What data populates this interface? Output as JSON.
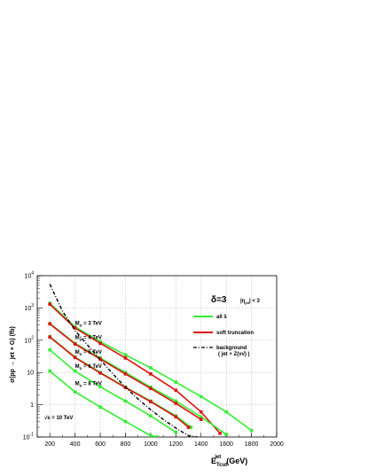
{
  "chart_data": {
    "type": "line",
    "ylabel": "σ(pp → jet + G)  (fb)",
    "xlabel_main": "E",
    "xlabel_sub": "Tcut",
    "xlabel_sup": "jet",
    "xlabel_unit": "(GeV)",
    "xlim": [
      100,
      2000
    ],
    "ylim_log10": [
      -1,
      4
    ],
    "y_log": true,
    "grid": true,
    "x_ticks": [
      {
        "v": 200,
        "t": "200"
      },
      {
        "v": 400,
        "t": "400"
      },
      {
        "v": 600,
        "t": "600"
      },
      {
        "v": 800,
        "t": "800"
      },
      {
        "v": 1000,
        "t": "1000"
      },
      {
        "v": 1200,
        "t": "1200"
      },
      {
        "v": 1400,
        "t": "1400"
      },
      {
        "v": 1600,
        "t": "1600"
      },
      {
        "v": 1800,
        "t": "1800"
      },
      {
        "v": 2000,
        "t": "2000"
      }
    ],
    "y_ticks": [
      {
        "v": -1,
        "base": "10",
        "exp": "-1"
      },
      {
        "v": 0,
        "base": "1",
        "exp": ""
      },
      {
        "v": 1,
        "base": "10",
        "exp": ""
      },
      {
        "v": 2,
        "base": "10",
        "exp": "2"
      },
      {
        "v": 3,
        "base": "10",
        "exp": "3"
      },
      {
        "v": 4,
        "base": "10",
        "exp": "4"
      }
    ],
    "series": [
      {
        "name": "all ŝ",
        "color": "#33ee33",
        "style": "solid",
        "group": "M_D = 3 TeV",
        "x": [
          200,
          400,
          600,
          800,
          1000,
          1200,
          1400,
          1600,
          1800
        ],
        "y": [
          1400,
          260,
          90,
          35,
          14,
          5,
          1.8,
          0.6,
          0.16
        ]
      },
      {
        "name": "soft truncation",
        "color": "#dd1111",
        "style": "solid",
        "group": "M_D = 3 TeV",
        "x": [
          200,
          400,
          600,
          800,
          1000,
          1200,
          1400,
          1550
        ],
        "y": [
          1300,
          240,
          80,
          28,
          9,
          2.8,
          0.6,
          0.13
        ]
      },
      {
        "name": "",
        "color": "#33ee33",
        "style": "solid",
        "group": "M_D = 4 TeV",
        "x": [
          200,
          400,
          600,
          800,
          1000,
          1200,
          1400,
          1600
        ],
        "y": [
          330,
          80,
          28,
          10,
          3.5,
          1.3,
          0.42,
          0.12
        ]
      },
      {
        "name": "",
        "color": "#dd1111",
        "style": "solid",
        "group": "M_D = 4 TeV",
        "x": [
          200,
          400,
          600,
          800,
          1000,
          1200,
          1400
        ],
        "y": [
          320,
          76,
          26,
          9,
          3.2,
          1.1,
          0.35
        ]
      },
      {
        "name": "",
        "color": "#33ee33",
        "style": "solid",
        "group": "M_D = 5 TeV",
        "x": [
          200,
          400,
          600,
          800,
          1000,
          1200,
          1320
        ],
        "y": [
          130,
          30,
          10,
          3.5,
          1.3,
          0.45,
          0.2
        ]
      },
      {
        "name": "",
        "color": "#dd1111",
        "style": "solid",
        "group": "M_D = 5 TeV",
        "x": [
          200,
          400,
          600,
          800,
          1000,
          1200,
          1300
        ],
        "y": [
          125,
          29,
          9.6,
          3.4,
          1.25,
          0.42,
          0.2
        ]
      },
      {
        "name": "",
        "color": "#33ee33",
        "style": "solid",
        "group": "M_D = 6 TeV",
        "x": [
          200,
          400,
          600,
          800,
          1000,
          1200
        ],
        "y": [
          50,
          11,
          3.6,
          1.3,
          0.45,
          0.14
        ]
      },
      {
        "name": "",
        "color": "#33ee33",
        "style": "solid",
        "group": "M_D = 8 TeV",
        "x": [
          200,
          400,
          600,
          800,
          1000,
          1050
        ],
        "y": [
          11,
          2.5,
          0.85,
          0.3,
          0.11,
          0.1
        ]
      },
      {
        "name": "background\n( jet + Z(νν̄) )",
        "color": "#000000",
        "style": "dashdot",
        "group": "background",
        "x": [
          200,
          300,
          400,
          500,
          600,
          700,
          800,
          900,
          1000,
          1100,
          1200,
          1300,
          1370
        ],
        "y": [
          5500,
          800,
          200,
          70,
          25,
          9,
          3.5,
          1.5,
          0.7,
          0.35,
          0.19,
          0.11,
          0.1
        ]
      }
    ],
    "legend": {
      "placement": "right",
      "items": [
        {
          "label": "all ŝ",
          "color": "#33ee33",
          "style": "solid"
        },
        {
          "label": "soft truncation",
          "color": "#dd1111",
          "style": "solid"
        },
        {
          "label": "background",
          "label2": "( jet + Z(νν̄) )",
          "color": "#000000",
          "style": "dashdot"
        }
      ]
    },
    "annotations": {
      "delta": "δ=3",
      "eta_cut": "|η",
      "eta_sub": "jet",
      "eta_tail": "| < 3",
      "sqrt_s": "√s = 10 TeV",
      "md_labels": [
        {
          "text": "M",
          "sub": "D",
          "tail": " = 3 TeV",
          "at_x": 400,
          "at_y": 300
        },
        {
          "text": "M",
          "sub": "D",
          "tail": " = 4 TeV",
          "at_x": 400,
          "at_y": 110
        },
        {
          "text": "M",
          "sub": "D",
          "tail": " = 5 TeV",
          "at_x": 400,
          "at_y": 38
        },
        {
          "text": "M",
          "sub": "D",
          "tail": " = 6 TeV",
          "at_x": 400,
          "at_y": 14
        },
        {
          "text": "M",
          "sub": "D",
          "tail": " = 8 TeV",
          "at_x": 400,
          "at_y": 4.0
        }
      ]
    }
  }
}
